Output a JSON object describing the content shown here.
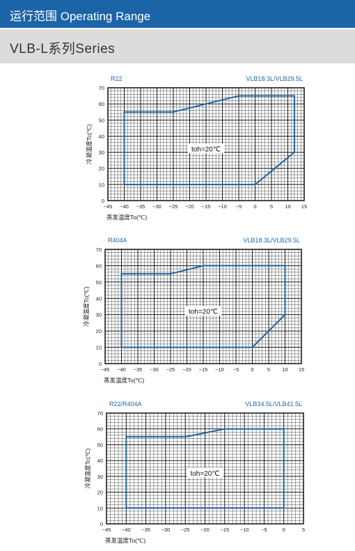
{
  "header": {
    "title": "运行范围 Operating Range"
  },
  "subheader": {
    "title": "VLB-L系列Series"
  },
  "colors": {
    "header_bg": "#1c64a8",
    "subheader_bg": "#dcdcdc",
    "envelope": "#1c64a8",
    "grid": "#000000"
  },
  "chart_data": [
    {
      "type": "line",
      "refrigerant": "R22",
      "models": "VLB18.3L/VLB29.5L",
      "xlabel": "蒸发温度To(℃)",
      "ylabel": "冷凝温度Tc(℃)",
      "xlim": [
        -45,
        15
      ],
      "ylim": [
        0,
        70
      ],
      "xticks": [
        -45,
        -40,
        -35,
        -30,
        -25,
        -20,
        -15,
        -10,
        -5,
        0,
        5,
        10,
        15
      ],
      "yticks": [
        0,
        10,
        20,
        30,
        40,
        50,
        60,
        70
      ],
      "grid": true,
      "annotation": "toh=20℃",
      "series": [
        {
          "x": [
            -40,
            -40,
            -25,
            -5,
            12,
            12,
            0,
            -40
          ],
          "y": [
            10,
            55,
            55,
            65,
            65,
            30,
            10,
            10
          ]
        }
      ]
    },
    {
      "type": "line",
      "refrigerant": "R404A",
      "models": "VLB18.3L/VLB29.5L",
      "xlabel": "蒸发温度To(℃)",
      "ylabel": "冷凝温度Tc(℃)",
      "xlim": [
        -45,
        15
      ],
      "ylim": [
        0,
        70
      ],
      "xticks": [
        -45,
        -40,
        -35,
        -30,
        -25,
        -20,
        -15,
        -10,
        -5,
        0,
        5,
        10,
        15
      ],
      "yticks": [
        0,
        10,
        20,
        30,
        40,
        50,
        60,
        70
      ],
      "grid": true,
      "annotation": "toh=20℃",
      "series": [
        {
          "x": [
            -40,
            -40,
            -25,
            -15,
            10,
            10,
            0,
            -40
          ],
          "y": [
            10,
            55,
            55,
            60,
            60,
            30,
            10,
            10
          ]
        }
      ]
    },
    {
      "type": "line",
      "refrigerant": "R22/R404A",
      "models": "VLB34.5L/VLB41.5L",
      "xlabel": "蒸发温度To(℃)",
      "ylabel": "冷凝温度Tc(℃)",
      "xlim": [
        -45,
        5
      ],
      "ylim": [
        0,
        70
      ],
      "xticks": [
        -45,
        -40,
        -35,
        -30,
        -25,
        -20,
        -15,
        -10,
        -5,
        0,
        5
      ],
      "yticks": [
        0,
        10,
        20,
        30,
        40,
        50,
        60,
        70
      ],
      "grid": true,
      "annotation": "toh=20℃",
      "series": [
        {
          "x": [
            -40,
            -40,
            -25,
            -15,
            0,
            0,
            -40
          ],
          "y": [
            10,
            55,
            55,
            60,
            60,
            10,
            10
          ]
        }
      ]
    }
  ]
}
